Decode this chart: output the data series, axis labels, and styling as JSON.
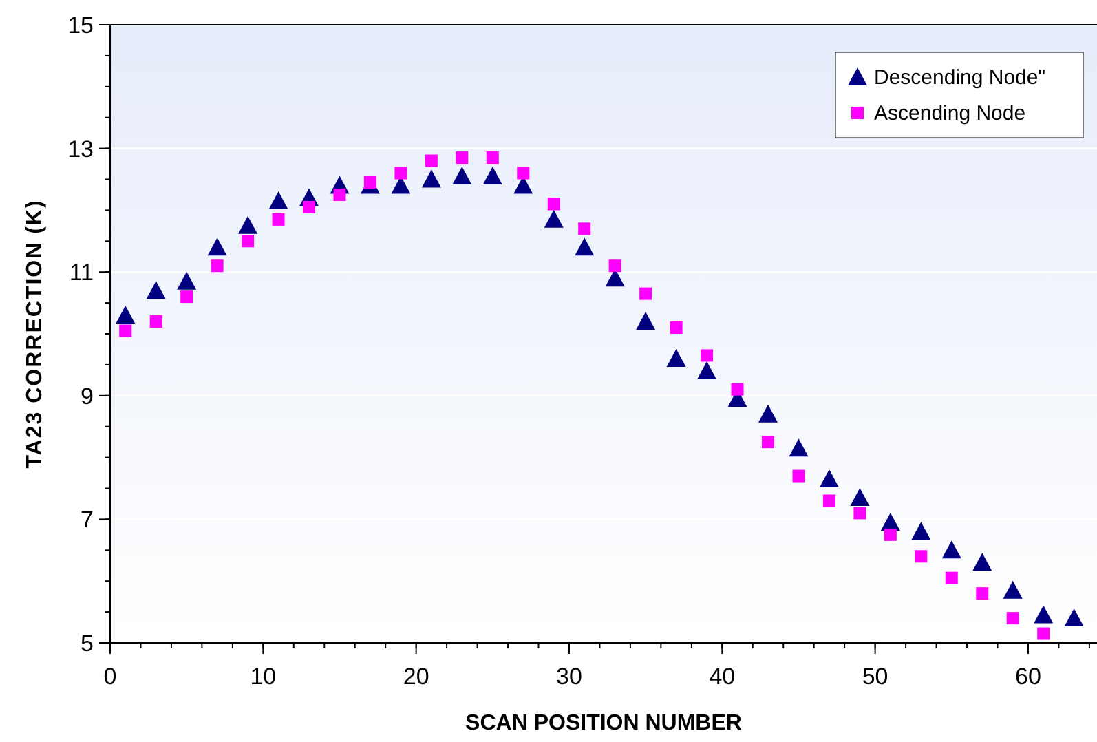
{
  "chart_data": {
    "type": "scatter",
    "xlabel": "SCAN POSITION NUMBER",
    "ylabel": "TA23 CORRECTION (K)",
    "xlim": [
      0,
      64.5
    ],
    "xticks": [
      0,
      10,
      20,
      30,
      40,
      50,
      60
    ],
    "ylim": [
      5,
      15
    ],
    "yticks": [
      5,
      7,
      9,
      11,
      13,
      15
    ],
    "grid": "y",
    "legend": "top right",
    "series": [
      {
        "name": "Descending Node\"",
        "color": "#000080",
        "marker": "triangle",
        "x": [
          1,
          3,
          5,
          7,
          9,
          11,
          13,
          15,
          17,
          19,
          21,
          23,
          25,
          27,
          29,
          31,
          33,
          35,
          37,
          39,
          41,
          43,
          45,
          47,
          49,
          51,
          53,
          55,
          57,
          59,
          61,
          63
        ],
        "values": [
          10.3,
          10.7,
          10.85,
          11.4,
          11.75,
          12.15,
          12.2,
          12.4,
          12.4,
          12.4,
          12.5,
          12.55,
          12.55,
          12.4,
          11.85,
          11.4,
          10.9,
          10.2,
          9.6,
          9.4,
          8.95,
          8.7,
          8.15,
          7.65,
          7.35,
          6.95,
          6.8,
          6.5,
          6.3,
          5.85,
          5.45,
          5.4
        ]
      },
      {
        "name": "Ascending Node",
        "color": "#ff00ff",
        "marker": "square",
        "x": [
          1,
          3,
          5,
          7,
          9,
          11,
          13,
          15,
          17,
          19,
          21,
          23,
          25,
          27,
          29,
          31,
          33,
          35,
          37,
          39,
          41,
          43,
          45,
          47,
          49,
          51,
          53,
          55,
          57,
          59,
          61
        ],
        "values": [
          10.05,
          10.2,
          10.6,
          11.1,
          11.5,
          11.85,
          12.05,
          12.25,
          12.45,
          12.6,
          12.8,
          12.85,
          12.85,
          12.6,
          12.1,
          11.7,
          11.1,
          10.65,
          10.1,
          9.65,
          9.1,
          8.25,
          7.7,
          7.3,
          7.1,
          6.75,
          6.4,
          6.05,
          5.8,
          5.4,
          5.15
        ]
      }
    ]
  }
}
